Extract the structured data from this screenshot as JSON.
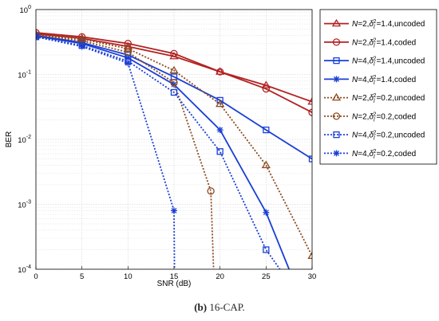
{
  "caption": {
    "label": "(b)",
    "text": "16-CAP."
  },
  "chart_data": {
    "type": "line",
    "xlabel": "SNR (dB)",
    "ylabel": "BER",
    "xlim": [
      0,
      30
    ],
    "ylim": [
      0.0001,
      1
    ],
    "yscale": "log",
    "grid": true,
    "legend_position": "right",
    "x_ticks": [
      "0",
      "5",
      "10",
      "15",
      "20",
      "25",
      "30"
    ],
    "y_ticks": [
      {
        "base": "10",
        "exp": "0"
      },
      {
        "base": "10",
        "exp": "-1"
      },
      {
        "base": "10",
        "exp": "-2"
      },
      {
        "base": "10",
        "exp": "-3"
      },
      {
        "base": "10",
        "exp": "-4"
      }
    ],
    "series": [
      {
        "name_n": "N",
        "name_sigma": "δ",
        "name_sub": "l",
        "name_sup": "2",
        "name_rest": "=1.4,uncoded",
        "name_pre": "=2,",
        "color": "#b22222",
        "dash": "solid",
        "marker": "triangle",
        "x": [
          0,
          5,
          10,
          15,
          20,
          25,
          30
        ],
        "y": [
          0.42,
          0.36,
          0.27,
          0.19,
          0.11,
          0.068,
          0.038
        ]
      },
      {
        "name_n": "N",
        "name_sigma": "δ",
        "name_sub": "l",
        "name_sup": "2",
        "name_rest": "=1.4,coded",
        "name_pre": "=2,",
        "color": "#b22222",
        "dash": "solid",
        "marker": "circle",
        "x": [
          0,
          5,
          10,
          15,
          20,
          25,
          30
        ],
        "y": [
          0.44,
          0.38,
          0.3,
          0.21,
          0.11,
          0.06,
          0.026
        ]
      },
      {
        "name_n": "N",
        "name_sigma": "δ",
        "name_sub": "l",
        "name_sup": "2",
        "name_rest": "=1.4,uncoded",
        "name_pre": "=4,",
        "color": "#1a3fd6",
        "dash": "solid",
        "marker": "square",
        "x": [
          0,
          5,
          10,
          15,
          20,
          25,
          30
        ],
        "y": [
          0.4,
          0.31,
          0.2,
          0.092,
          0.04,
          0.014,
          0.005
        ]
      },
      {
        "name_n": "N",
        "name_sigma": "δ",
        "name_sub": "l",
        "name_sup": "2",
        "name_rest": "=1.4,coded",
        "name_pre": "=4,",
        "color": "#1a3fd6",
        "dash": "solid",
        "marker": "star",
        "x": [
          0,
          5,
          10,
          15,
          20,
          25,
          27.5
        ],
        "y": [
          0.39,
          0.3,
          0.18,
          0.07,
          0.014,
          0.00075,
          0.0001
        ]
      },
      {
        "name_n": "N",
        "name_sigma": "δ",
        "name_sub": "l",
        "name_sup": "2",
        "name_rest": "=0.2,uncoded",
        "name_pre": "=2,",
        "color": "#8b4a1e",
        "dash": "dotted",
        "marker": "triangle",
        "x": [
          0,
          5,
          10,
          15,
          20,
          25,
          30
        ],
        "y": [
          0.41,
          0.35,
          0.25,
          0.115,
          0.035,
          0.004,
          0.00016
        ]
      },
      {
        "name_n": "N",
        "name_sigma": "δ",
        "name_sub": "l",
        "name_sup": "2",
        "name_rest": "=0.2,coded",
        "name_pre": "=2,",
        "color": "#8b4a1e",
        "dash": "dotted",
        "marker": "circle",
        "x": [
          0,
          5,
          10,
          15,
          19,
          19.3
        ],
        "y": [
          0.4,
          0.33,
          0.22,
          0.075,
          0.0016,
          0.0001
        ]
      },
      {
        "name_n": "N",
        "name_sigma": "δ",
        "name_sub": "l",
        "name_sup": "2",
        "name_rest": "=0.2,uncoded",
        "name_pre": "=4,",
        "color": "#1a3fd6",
        "dash": "dotted",
        "marker": "square",
        "x": [
          0,
          5,
          10,
          15,
          20,
          25,
          26.5
        ],
        "y": [
          0.38,
          0.28,
          0.16,
          0.053,
          0.0065,
          0.0002,
          0.0001
        ]
      },
      {
        "name_n": "N",
        "name_sigma": "δ",
        "name_sub": "l",
        "name_sup": "2",
        "name_rest": "=0.2,coded",
        "name_pre": "=4,",
        "color": "#1a3fd6",
        "dash": "dotted",
        "marker": "star",
        "x": [
          0,
          5,
          10,
          15,
          15.05
        ],
        "y": [
          0.38,
          0.27,
          0.15,
          0.0008,
          0.0001
        ]
      }
    ]
  }
}
